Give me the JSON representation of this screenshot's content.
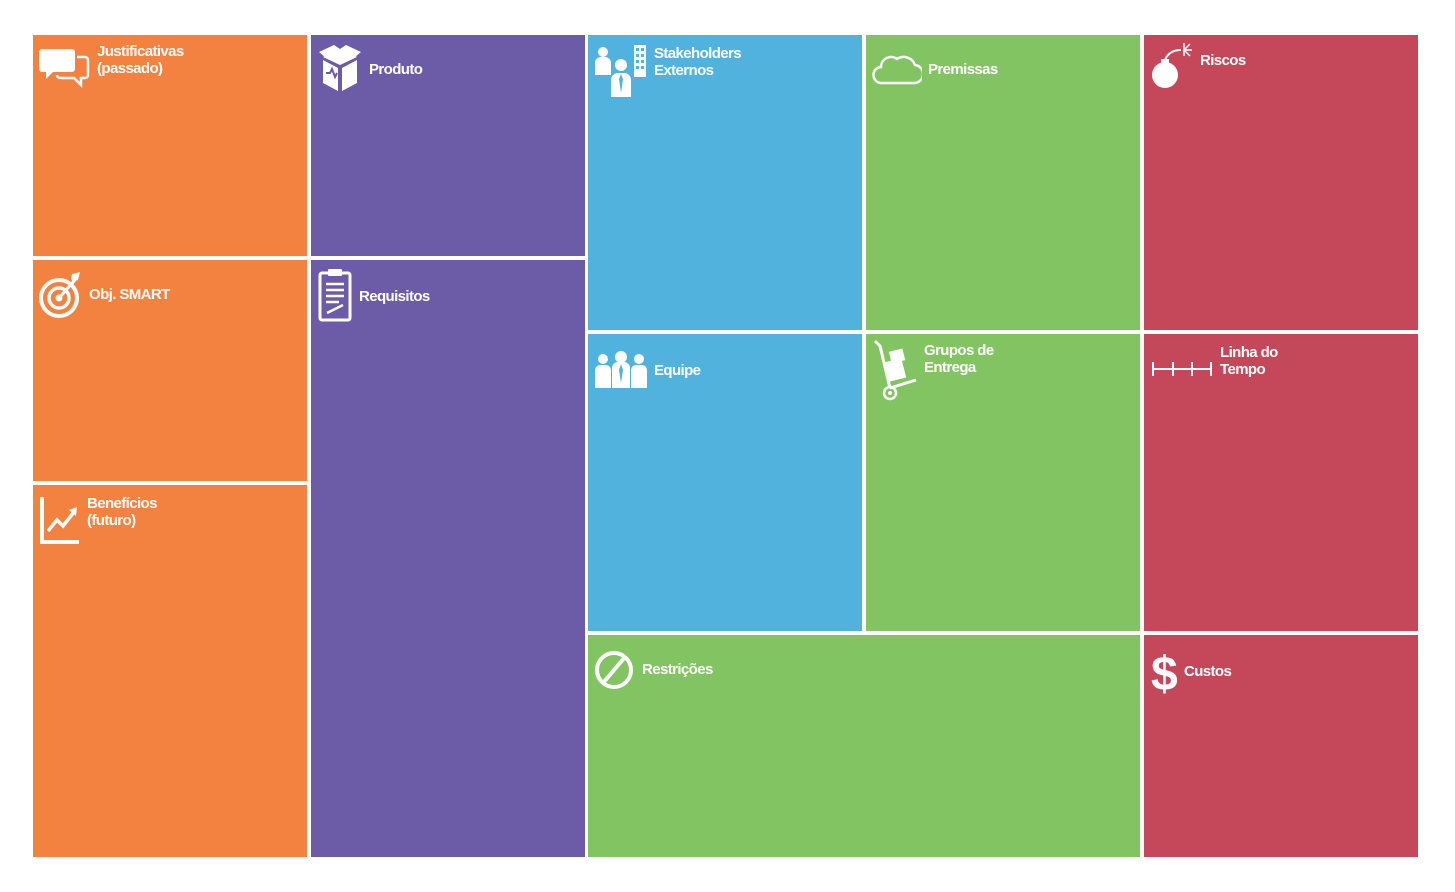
{
  "colors": {
    "orange": "#F3813F",
    "purple": "#6C5BA6",
    "blue": "#52B2DE",
    "green": "#82C462",
    "red": "#C5485A",
    "text": "#FFFFFF",
    "background": "#FFFFFF"
  },
  "blocks": {
    "justificativas": {
      "title": "Justificativas\n(passado)",
      "icon": "speech-bubbles-icon",
      "color": "orange"
    },
    "obj_smart": {
      "title": "Obj. SMART",
      "icon": "target-icon",
      "color": "orange"
    },
    "beneficios": {
      "title": "Benefícios\n(futuro)",
      "icon": "trend-chart-icon",
      "color": "orange"
    },
    "produto": {
      "title": "Produto",
      "icon": "open-box-icon",
      "color": "purple"
    },
    "requisitos": {
      "title": "Requisitos",
      "icon": "clipboard-icon",
      "color": "purple"
    },
    "stakeholders": {
      "title": "Stakeholders\nExternos",
      "icon": "people-building-icon",
      "color": "blue"
    },
    "equipe": {
      "title": "Equipe",
      "icon": "team-icon",
      "color": "blue"
    },
    "premissas": {
      "title": "Premissas",
      "icon": "cloud-icon",
      "color": "green"
    },
    "grupos": {
      "title": "Grupos de\nEntrega",
      "icon": "hand-truck-icon",
      "color": "green"
    },
    "restricoes": {
      "title": "Restrições",
      "icon": "prohibited-icon",
      "color": "green"
    },
    "riscos": {
      "title": "Riscos",
      "icon": "bomb-icon",
      "color": "red"
    },
    "linha": {
      "title": "Linha do\nTempo",
      "icon": "timeline-icon",
      "color": "red"
    },
    "custos": {
      "title": "Custos",
      "icon": "dollar-icon",
      "color": "red"
    }
  }
}
